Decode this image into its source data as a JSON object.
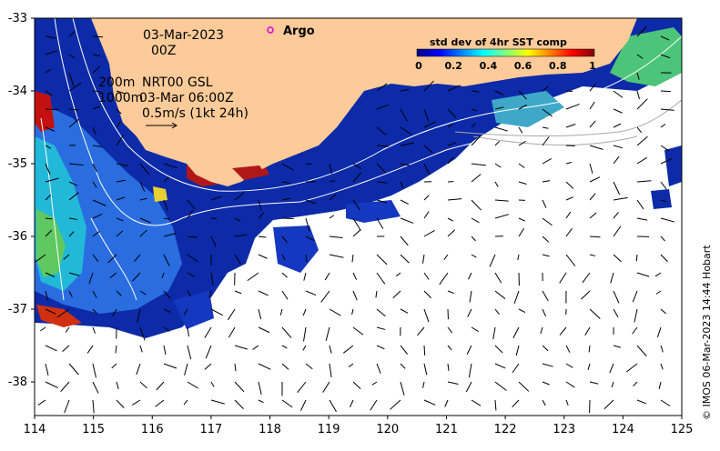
{
  "map": {
    "date": "03-Mar-2023",
    "time": "00Z",
    "depth_200": "200m",
    "depth_1000": "1000m",
    "current_source": "NRT00 GSL",
    "current_time": "03-Mar 06:00Z",
    "scale_label": "0.5m/s (1kt 24h)",
    "argo_label": "Argo",
    "credit": "© IMOS 06-Mar-2023 14:44 Hobart",
    "colorbar": {
      "title": "std dev of 4hr SST comp",
      "ticks": [
        "0",
        "0.2",
        "0.4",
        "0.6",
        "0.8",
        "1"
      ],
      "colors": [
        "#00007f",
        "#0000ff",
        "#0080ff",
        "#00ffff",
        "#80ff80",
        "#ffff00",
        "#ff8000",
        "#ff0000",
        "#800000"
      ]
    },
    "axes": {
      "x_ticks": [
        "114",
        "115",
        "116",
        "117",
        "118",
        "119",
        "120",
        "121",
        "122",
        "123",
        "124",
        "125"
      ],
      "y_ticks": [
        "-33",
        "-34",
        "-35",
        "-36",
        "-37",
        "-38"
      ]
    },
    "colors": {
      "land": "#fccb99",
      "ocean_dark": "#0a1f9e",
      "ocean_mid": "#1f55d8",
      "argo": "#e000e0"
    }
  }
}
